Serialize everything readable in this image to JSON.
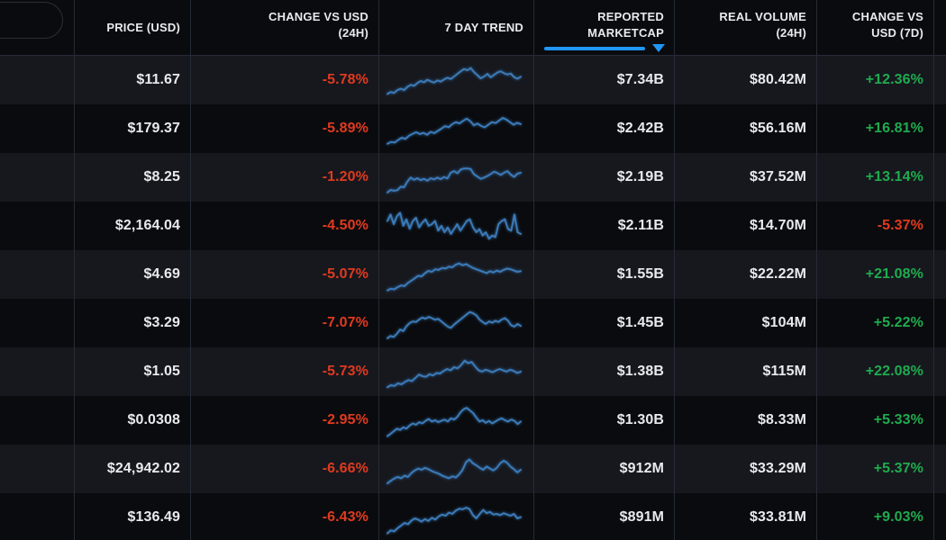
{
  "colors": {
    "accent_blue": "#2196f3",
    "negative_red": "#e03a1f",
    "positive_green": "#1fab4e",
    "sparkline_blue": "#3b7ab8",
    "row_alt_background": "#16181e",
    "base_background": "#0a0b0e"
  },
  "header": {
    "columns": [
      {
        "id": "asset",
        "line1": "",
        "line2": ""
      },
      {
        "id": "price",
        "line1": "PRICE (USD)",
        "line2": ""
      },
      {
        "id": "change_24h",
        "line1": "CHANGE VS USD",
        "line2": "(24H)"
      },
      {
        "id": "trend",
        "line1": "7 DAY TREND",
        "line2": ""
      },
      {
        "id": "marketcap",
        "line1": "REPORTED",
        "line2": "MARKETCAP",
        "sorted": true,
        "sort_direction": "desc"
      },
      {
        "id": "volume",
        "line1": "REAL VOLUME",
        "line2": "(24H)"
      },
      {
        "id": "change_7d",
        "line1": "CHANGE VS",
        "line2": "USD (7D)"
      }
    ]
  },
  "rows": [
    {
      "price": "$11.67",
      "change_24h": "-5.78%",
      "marketcap": "$7.34B",
      "volume": "$80.42M",
      "change_7d": "+12.36%",
      "trend": [
        10,
        16,
        13,
        22,
        26,
        22,
        32,
        38,
        35,
        44,
        50,
        46,
        54,
        49,
        45,
        52,
        48,
        55,
        60,
        56,
        64,
        72,
        80,
        87,
        83,
        90,
        77,
        68,
        58,
        64,
        72,
        61,
        69,
        76,
        80,
        74,
        70,
        73,
        62,
        57,
        63
      ]
    },
    {
      "price": "$179.37",
      "change_24h": "-5.89%",
      "marketcap": "$2.42B",
      "volume": "$56.16M",
      "change_7d": "+16.81%",
      "trend": [
        6,
        12,
        10,
        18,
        25,
        21,
        31,
        37,
        42,
        36,
        40,
        34,
        43,
        39,
        46,
        53,
        61,
        57,
        67,
        73,
        69,
        77,
        84,
        76,
        63,
        69,
        61,
        57,
        65,
        73,
        70,
        78,
        86,
        81,
        73,
        65,
        71,
        67
      ]
    },
    {
      "price": "$8.25",
      "change_24h": "-1.20%",
      "marketcap": "$2.19B",
      "volume": "$37.52M",
      "change_7d": "+13.14%",
      "trend": [
        6,
        14,
        11,
        13,
        24,
        22,
        40,
        52,
        45,
        50,
        44,
        48,
        42,
        50,
        46,
        52,
        47,
        54,
        49,
        67,
        72,
        65,
        77,
        80,
        80,
        78,
        62,
        55,
        48,
        52,
        57,
        63,
        70,
        66,
        60,
        67,
        72,
        61,
        54,
        64,
        67
      ]
    },
    {
      "price": "$2,164.04",
      "change_24h": "-4.50%",
      "marketcap": "$2.11B",
      "volume": "$14.70M",
      "change_7d": "-5.37%",
      "trend": [
        68,
        88,
        58,
        83,
        93,
        53,
        73,
        44,
        68,
        78,
        48,
        63,
        73,
        53,
        58,
        68,
        38,
        53,
        33,
        48,
        28,
        43,
        58,
        38,
        53,
        68,
        73,
        48,
        33,
        43,
        23,
        33,
        13,
        23,
        18,
        58,
        68,
        73,
        43,
        38,
        88,
        33,
        28
      ]
    },
    {
      "price": "$4.69",
      "change_24h": "-5.07%",
      "marketcap": "$1.55B",
      "volume": "$22.22M",
      "change_7d": "+21.08%",
      "trend": [
        4,
        9,
        7,
        14,
        19,
        17,
        27,
        34,
        41,
        49,
        47,
        57,
        64,
        61,
        69,
        67,
        73,
        71,
        77,
        75,
        83,
        87,
        81,
        85,
        79,
        73,
        69,
        65,
        61,
        57,
        63,
        59,
        65,
        61,
        67,
        71,
        69,
        65,
        61,
        63
      ]
    },
    {
      "price": "$3.29",
      "change_24h": "-7.07%",
      "marketcap": "$1.45B",
      "volume": "$104M",
      "change_7d": "+5.22%",
      "trend": [
        6,
        13,
        10,
        20,
        33,
        28,
        43,
        53,
        58,
        56,
        64,
        70,
        66,
        72,
        68,
        63,
        66,
        58,
        50,
        42,
        38,
        48,
        56,
        64,
        72,
        80,
        87,
        83,
        77,
        64,
        56,
        50,
        58,
        54,
        60,
        56,
        64,
        68,
        60,
        46,
        42,
        50,
        44
      ]
    },
    {
      "price": "$1.05",
      "change_24h": "-5.73%",
      "marketcap": "$1.38B",
      "volume": "$115M",
      "change_7d": "+22.08%",
      "trend": [
        5,
        11,
        9,
        17,
        14,
        21,
        27,
        24,
        34,
        44,
        39,
        37,
        45,
        41,
        49,
        47,
        55,
        61,
        57,
        67,
        63,
        73,
        87,
        79,
        83,
        69,
        57,
        53,
        59,
        55,
        51,
        57,
        61,
        57,
        53,
        59,
        55,
        49,
        53
      ]
    },
    {
      "price": "$0.0308",
      "change_24h": "-2.95%",
      "marketcap": "$1.30B",
      "volume": "$8.33M",
      "change_7d": "+5.33%",
      "trend": [
        4,
        11,
        19,
        27,
        23,
        31,
        27,
        37,
        43,
        39,
        47,
        43,
        51,
        57,
        49,
        53,
        47,
        51,
        55,
        49,
        59,
        55,
        63,
        77,
        87,
        91,
        83,
        75,
        61,
        49,
        53,
        45,
        51,
        43,
        49,
        55,
        59,
        53,
        49,
        55,
        51,
        41,
        49
      ]
    },
    {
      "price": "$24,942.02",
      "change_24h": "-6.66%",
      "marketcap": "$912M",
      "volume": "$33.29M",
      "change_7d": "+5.37%",
      "trend": [
        8,
        16,
        23,
        28,
        24,
        32,
        28,
        40,
        48,
        54,
        50,
        56,
        52,
        46,
        42,
        38,
        32,
        28,
        24,
        30,
        26,
        36,
        50,
        74,
        82,
        70,
        64,
        56,
        50,
        60,
        54,
        48,
        56,
        70,
        78,
        72,
        60,
        52,
        42,
        50
      ]
    },
    {
      "price": "$136.49",
      "change_24h": "-6.43%",
      "marketcap": "$891M",
      "volume": "$33.81M",
      "change_7d": "+9.03%",
      "trend": [
        4,
        13,
        10,
        20,
        28,
        36,
        32,
        43,
        50,
        46,
        40,
        48,
        42,
        52,
        46,
        56,
        62,
        58,
        68,
        64,
        74,
        80,
        78,
        83,
        79,
        60,
        50,
        64,
        76,
        66,
        70,
        62,
        64,
        60,
        66,
        62,
        58,
        64,
        50,
        54
      ]
    }
  ]
}
